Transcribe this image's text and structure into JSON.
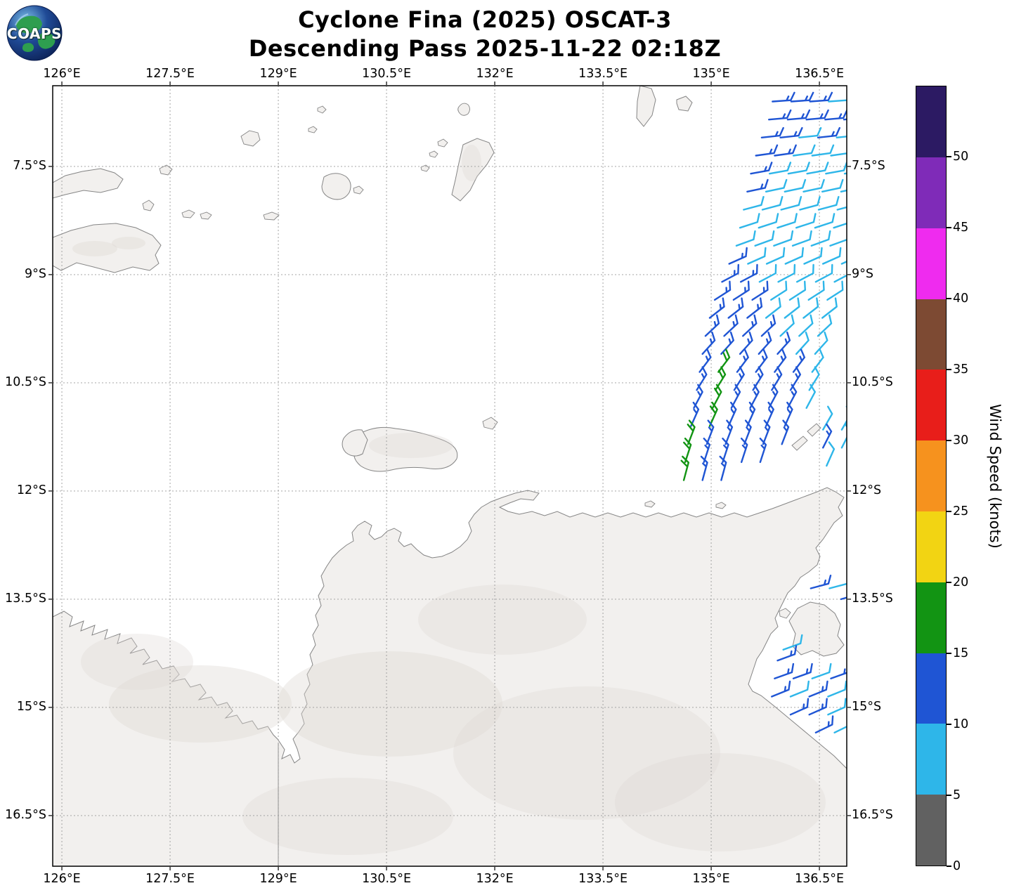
{
  "header": {
    "title_line1": "Cyclone Fina (2025) OSCAT-3",
    "title_line2": "Descending Pass 2025-11-22 02:18Z",
    "logo_text": "COAPS"
  },
  "axes": {
    "lon_ticks": [
      {
        "value": 126.0,
        "label": "126°E"
      },
      {
        "value": 127.5,
        "label": "127.5°E"
      },
      {
        "value": 129.0,
        "label": "129°E"
      },
      {
        "value": 130.5,
        "label": "130.5°E"
      },
      {
        "value": 132.0,
        "label": "132°E"
      },
      {
        "value": 133.5,
        "label": "133.5°E"
      },
      {
        "value": 135.0,
        "label": "135°E"
      },
      {
        "value": 136.5,
        "label": "136.5°E"
      }
    ],
    "lat_ticks": [
      {
        "value": 7.5,
        "label": "7.5°S"
      },
      {
        "value": 9.0,
        "label": "9°S"
      },
      {
        "value": 10.5,
        "label": "10.5°S"
      },
      {
        "value": 12.0,
        "label": "12°S"
      },
      {
        "value": 13.5,
        "label": "13.5°S"
      },
      {
        "value": 15.0,
        "label": "15°S"
      },
      {
        "value": 16.5,
        "label": "16.5°S"
      }
    ]
  },
  "colorbar": {
    "label": "Wind Speed (knots)",
    "ticks": [
      0,
      5,
      10,
      15,
      20,
      25,
      30,
      35,
      40,
      45,
      50
    ],
    "bins": [
      {
        "from": 0,
        "to": 5,
        "color": "#616161"
      },
      {
        "from": 5,
        "to": 10,
        "color": "#2eb6e9"
      },
      {
        "from": 10,
        "to": 15,
        "color": "#1f55d4"
      },
      {
        "from": 15,
        "to": 20,
        "color": "#129413"
      },
      {
        "from": 20,
        "to": 25,
        "color": "#f2d413"
      },
      {
        "from": 25,
        "to": 30,
        "color": "#f6921e"
      },
      {
        "from": 30,
        "to": 35,
        "color": "#e81e1a"
      },
      {
        "from": 35,
        "to": 40,
        "color": "#7d4a33"
      },
      {
        "from": 40,
        "to": 45,
        "color": "#ef2bef"
      },
      {
        "from": 45,
        "to": 50,
        "color": "#7f2bb8"
      },
      {
        "from": 50,
        "to": 55,
        "color": "#2c1a63"
      }
    ]
  },
  "chart_data": {
    "type": "wind_barb_map",
    "title": "Cyclone Fina (2025) OSCAT-3 — Descending Pass 2025-11-22 02:18Z",
    "instrument": "OSCAT-3 scatterometer",
    "storm": "Cyclone Fina (2025)",
    "pass": "Descending",
    "datetime_utc": "2025-11-22 02:18Z",
    "units": "knots",
    "lon_range_e": [
      125.87,
      136.88
    ],
    "lat_range_s": [
      6.38,
      17.2
    ],
    "grid_lons_e": [
      126,
      127.5,
      129,
      130.5,
      132,
      133.5,
      135,
      136.5
    ],
    "grid_lats_s": [
      7.5,
      9,
      10.5,
      12,
      13.5,
      15,
      16.5
    ],
    "barb_spacing_deg": 0.26,
    "barb_rows": [
      {
        "lat_s": 6.6,
        "lon0": 135.85,
        "dir": 86,
        "spd": [
          13,
          13,
          13,
          8
        ]
      },
      {
        "lat_s": 6.85,
        "lon0": 135.8,
        "dir": 85,
        "spd": [
          13,
          13,
          13,
          13,
          13
        ]
      },
      {
        "lat_s": 7.1,
        "lon0": 135.7,
        "dir": 84,
        "spd": [
          13,
          13,
          8,
          13,
          8
        ]
      },
      {
        "lat_s": 7.35,
        "lon0": 135.62,
        "dir": 82,
        "spd": [
          13,
          13,
          8,
          8,
          8
        ]
      },
      {
        "lat_s": 7.6,
        "lon0": 135.55,
        "dir": 80,
        "spd": [
          13,
          8,
          8,
          8,
          8,
          8
        ]
      },
      {
        "lat_s": 7.85,
        "lon0": 135.5,
        "dir": 78,
        "spd": [
          13,
          8,
          8,
          8,
          8,
          8
        ]
      },
      {
        "lat_s": 8.1,
        "lon0": 135.45,
        "dir": 75,
        "spd": [
          8,
          8,
          8,
          8,
          8,
          8
        ]
      },
      {
        "lat_s": 8.35,
        "lon0": 135.4,
        "dir": 72,
        "spd": [
          8,
          8,
          8,
          8,
          8,
          8
        ]
      },
      {
        "lat_s": 8.6,
        "lon0": 135.35,
        "dir": 70,
        "spd": [
          8,
          8,
          8,
          8,
          8,
          8
        ]
      },
      {
        "lat_s": 8.85,
        "lon0": 135.25,
        "dir": 66,
        "spd": [
          13,
          8,
          8,
          8,
          8,
          8,
          8
        ]
      },
      {
        "lat_s": 9.1,
        "lon0": 135.15,
        "dir": 62,
        "spd": [
          13,
          13,
          8,
          8,
          8,
          8,
          8
        ]
      },
      {
        "lat_s": 9.35,
        "lon0": 135.05,
        "dir": 57,
        "spd": [
          13,
          13,
          13,
          8,
          8,
          8,
          8
        ]
      },
      {
        "lat_s": 9.6,
        "lon0": 134.98,
        "dir": 52,
        "spd": [
          13,
          13,
          13,
          8,
          8,
          8,
          8
        ]
      },
      {
        "lat_s": 9.85,
        "lon0": 134.92,
        "dir": 47,
        "spd": [
          13,
          13,
          13,
          13,
          8,
          8,
          8
        ]
      },
      {
        "lat_s": 10.1,
        "lon0": 134.88,
        "dir": 42,
        "spd": [
          13,
          13,
          13,
          13,
          13,
          8,
          8
        ]
      },
      {
        "lat_s": 10.35,
        "lon0": 134.84,
        "dir": 37,
        "spd": [
          13,
          18,
          13,
          13,
          13,
          13,
          8
        ]
      },
      {
        "lat_s": 10.6,
        "lon0": 134.8,
        "dir": 32,
        "spd": [
          13,
          18,
          13,
          13,
          13,
          13,
          8
        ]
      },
      {
        "lat_s": 10.85,
        "lon0": 134.76,
        "dir": 28,
        "spd": [
          13,
          18,
          13,
          13,
          13,
          13,
          8
        ]
      },
      {
        "lat_s": 11.1,
        "lon0": 134.72,
        "dir": 24,
        "spd": [
          13,
          18,
          13,
          13,
          13,
          13
        ]
      },
      {
        "lat_s": 11.35,
        "lon0": 134.68,
        "dir": 21,
        "spd": [
          18,
          13,
          13,
          13,
          13,
          13
        ]
      },
      {
        "lat_s": 11.6,
        "lon0": 134.64,
        "dir": 18,
        "spd": [
          18,
          13,
          13,
          13,
          13
        ]
      },
      {
        "lat_s": 11.85,
        "lon0": 134.62,
        "dir": 15,
        "spd": [
          18,
          13,
          13
        ]
      },
      {
        "lat_s": 11.15,
        "lon0": 136.55,
        "dir": 30,
        "spd": [
          8,
          8
        ]
      },
      {
        "lat_s": 11.4,
        "lon0": 136.55,
        "dir": 27,
        "spd": [
          13,
          8
        ]
      },
      {
        "lat_s": 11.65,
        "lon0": 136.6,
        "dir": 24,
        "spd": [
          8
        ]
      },
      {
        "lat_s": 13.35,
        "lon0": 136.38,
        "dir": 75,
        "spd": [
          13,
          8
        ]
      },
      {
        "lat_s": 13.5,
        "lon0": 136.8,
        "dir": 74,
        "spd": [
          13
        ]
      },
      {
        "lat_s": 14.2,
        "lon0": 136.0,
        "dir": 70,
        "spd": [
          8
        ]
      },
      {
        "lat_s": 14.35,
        "lon0": 135.92,
        "dir": 70,
        "spd": [
          13
        ]
      },
      {
        "lat_s": 14.6,
        "lon0": 135.88,
        "dir": 70,
        "spd": [
          13,
          13,
          8,
          13
        ]
      },
      {
        "lat_s": 14.85,
        "lon0": 135.84,
        "dir": 68,
        "spd": [
          13,
          8,
          13,
          8
        ]
      },
      {
        "lat_s": 15.1,
        "lon0": 136.1,
        "dir": 66,
        "spd": [
          13,
          13,
          8
        ]
      },
      {
        "lat_s": 15.35,
        "lon0": 136.45,
        "dir": 64,
        "spd": [
          13,
          8
        ]
      }
    ]
  }
}
